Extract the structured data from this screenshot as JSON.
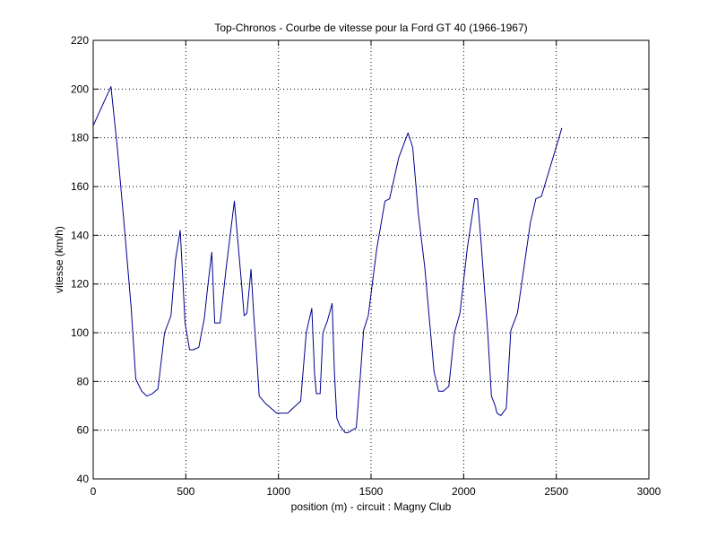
{
  "chart_data": {
    "type": "line",
    "title": "Top-Chronos - Courbe de vitesse pour la Ford GT 40 (1966-1967)",
    "xlabel": "position (m) - circuit : Magny Club",
    "ylabel": "vitesse (km/h)",
    "xlim": [
      0,
      3000
    ],
    "ylim": [
      40,
      220
    ],
    "xticks": [
      0,
      500,
      1000,
      1500,
      2000,
      2500,
      3000
    ],
    "yticks": [
      40,
      60,
      80,
      100,
      120,
      140,
      160,
      180,
      200,
      220
    ],
    "grid": true,
    "line_color": "#00008f",
    "series": [
      {
        "x": [
          0,
          96,
          130,
          170,
          205,
          230,
          262,
          290,
          320,
          350,
          385,
          420,
          444,
          470,
          496,
          520,
          540,
          570,
          600,
          620,
          640,
          656,
          685,
          720,
          762,
          800,
          815,
          830,
          852,
          866,
          880,
          896,
          930,
          990,
          1010,
          1050,
          1120,
          1150,
          1180,
          1195,
          1205,
          1225,
          1240,
          1265,
          1290,
          1302,
          1315,
          1330,
          1360,
          1375,
          1420,
          1440,
          1460,
          1485,
          1530,
          1575,
          1600,
          1650,
          1700,
          1725,
          1755,
          1790,
          1840,
          1865,
          1890,
          1920,
          1950,
          1980,
          2020,
          2060,
          2075,
          2095,
          2130,
          2150,
          2170,
          2180,
          2200,
          2230,
          2255,
          2290,
          2360,
          2390,
          2420,
          2530
        ],
        "y": [
          185,
          201,
          176,
          142,
          110,
          81,
          76,
          74,
          75,
          77,
          100,
          107,
          130,
          142,
          104,
          93,
          93,
          94,
          106,
          120,
          133,
          104,
          104,
          128,
          154,
          121,
          107,
          108,
          126,
          108,
          93,
          74,
          71,
          67,
          67,
          67,
          72,
          100,
          110,
          83,
          75,
          75,
          100,
          105,
          112,
          84,
          65,
          62,
          59,
          59,
          61,
          80,
          101,
          107,
          134,
          154,
          155,
          172,
          182,
          176,
          149,
          127,
          84,
          76,
          76,
          78,
          100,
          108,
          135,
          155,
          155,
          136,
          100,
          74,
          70,
          67,
          66,
          69,
          101,
          108,
          145,
          155,
          156,
          184
        ]
      }
    ]
  }
}
